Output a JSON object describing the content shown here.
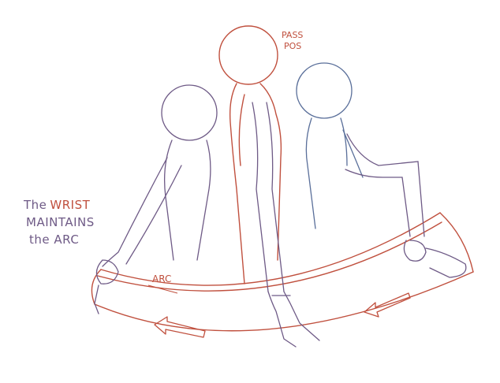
{
  "annotation": {
    "line1": "The",
    "line1_emph": "WRIST",
    "line2": "MAINTAINS",
    "line3": "the ARC"
  },
  "pass_pos": {
    "line1": "PASS",
    "line2": "POS"
  },
  "arc_label": "ARC",
  "colors": {
    "red_pencil": "#c0503e",
    "purple_pencil": "#6e5a86",
    "blue_pencil": "#5a6f9a"
  }
}
